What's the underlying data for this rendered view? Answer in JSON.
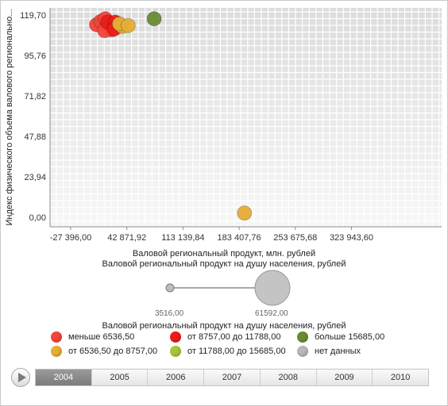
{
  "chart_data": {
    "type": "scatter",
    "xlabel": "Валовой региональный продукт, млн. рублей",
    "ylabel": "Индекс физического объема валового регионально...",
    "xlim": [
      -27396.0,
      340000
    ],
    "ylim": [
      -5,
      121
    ],
    "x_ticks": [
      -27396.0,
      42871.92,
      113139.84,
      183407.76,
      253675.68,
      323943.6
    ],
    "x_tick_labels": [
      "-27 396,00",
      "42 871,92",
      "113 139,84",
      "183 407,76",
      "253 675,68",
      "323 943,60"
    ],
    "y_ticks": [
      0.0,
      23.94,
      47.88,
      71.82,
      95.76,
      119.7
    ],
    "y_tick_labels": [
      "0,00",
      "23,94",
      "47,88",
      "71,82",
      "95,76",
      "119,70"
    ],
    "grid": true,
    "points": [
      {
        "x": 5000,
        "y": 114.0,
        "color": "#f5443a"
      },
      {
        "x": 10500,
        "y": 116.0,
        "color": "#f5443a"
      },
      {
        "x": 16000,
        "y": 117.5,
        "color": "#f5443a"
      },
      {
        "x": 20500,
        "y": 112.0,
        "color": "#f5443a"
      },
      {
        "x": 23500,
        "y": 111.0,
        "color": "#f5443a"
      },
      {
        "x": 15000,
        "y": 110.5,
        "color": "#f5443a"
      },
      {
        "x": 19000,
        "y": 115.5,
        "color": "#ee1c17"
      },
      {
        "x": 28500,
        "y": 115.5,
        "color": "#ee1c17"
      },
      {
        "x": 27000,
        "y": 111.5,
        "color": "#ee1c17"
      },
      {
        "x": 37000,
        "y": 113.0,
        "color": "#e6ad36"
      },
      {
        "x": 33500,
        "y": 114.5,
        "color": "#e6ad36"
      },
      {
        "x": 44500,
        "y": 113.5,
        "color": "#e6ad36"
      },
      {
        "x": 77000,
        "y": 117.5,
        "color": "#6b8b35"
      },
      {
        "x": 190000,
        "y": 2.5,
        "color": "#e6ad36"
      }
    ],
    "size_legend": {
      "title": "Валовой региональный продукт на душу населения, рублей",
      "min_label": "3516,00",
      "max_label": "61592,00"
    },
    "color_legend_title": "Валовой региональный продукт на душу населения, рублей",
    "legend": [
      {
        "label": "меньше 6536,50",
        "color": "#f5443a"
      },
      {
        "label": "от 8757,00 до 11788,00",
        "color": "#ee1c17"
      },
      {
        "label": "больше 15685,00",
        "color": "#6b8b35"
      },
      {
        "label": "от 6536,50 до 8757,00",
        "color": "#e6ad36"
      },
      {
        "label": "от 11788,00 до 15685,00",
        "color": "#a7c53a"
      },
      {
        "label": "нет данных",
        "color": "#b8b8b8"
      }
    ]
  },
  "timeline": {
    "years": [
      "2004",
      "2005",
      "2006",
      "2007",
      "2008",
      "2009",
      "2010"
    ],
    "selected": "2004"
  },
  "icons": {
    "play": "play-icon"
  }
}
